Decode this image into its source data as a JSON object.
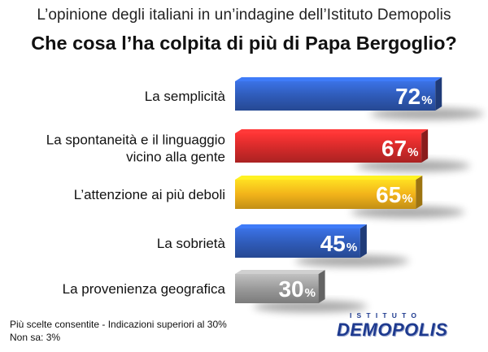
{
  "header": {
    "subtitle": "L’opinione degli italiani in un’indagine dell’Istituto Demopolis",
    "title": "Che cosa l’ha colpita di più di Papa Bergoglio?"
  },
  "chart_data": {
    "type": "bar",
    "orientation": "horizontal",
    "categories": [
      [
        "La semplicità"
      ],
      [
        "La spontaneità e il linguaggio",
        "vicino alla gente"
      ],
      [
        "L’attenzione ai più deboli"
      ],
      [
        "La sobrietà"
      ],
      [
        "La provenienza geografica"
      ]
    ],
    "values": [
      72,
      67,
      65,
      45,
      30
    ],
    "value_suffix": "%",
    "colors": [
      "#2f5bb8",
      "#d42a2a",
      "#f2b31a",
      "#2f5bb8",
      "#9a9a9a"
    ],
    "xlim": [
      0,
      100
    ]
  },
  "footer": {
    "note1": "Più scelte consentite - Indicazioni superiori al 30%",
    "note2": "Non sa: 3%"
  },
  "logo": {
    "top": "ISTITUTO",
    "main": "DEMOPOLIS",
    "color": "#1e3a8f"
  }
}
